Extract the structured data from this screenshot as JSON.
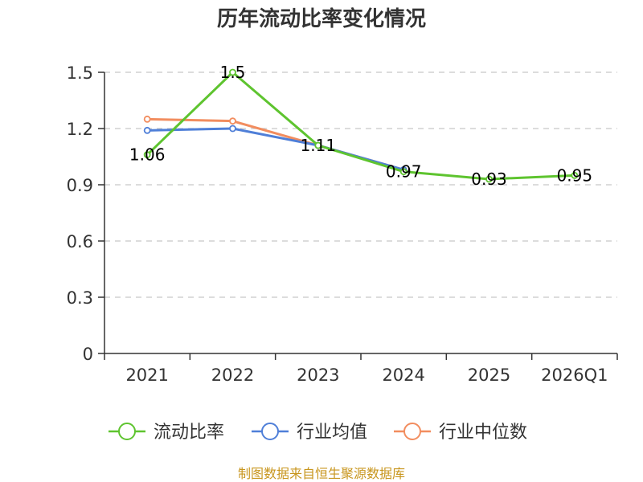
{
  "chart_data": {
    "type": "line",
    "title": "历年流动比率变化情况",
    "categories": [
      "2021",
      "2022",
      "2023",
      "2024",
      "2025",
      "2026Q1"
    ],
    "ylim": [
      0,
      1.5
    ],
    "yticks": [
      "0",
      "0.3",
      "0.6",
      "0.9",
      "1.2",
      "1.5"
    ],
    "ytick_values": [
      0,
      0.3,
      0.6,
      0.9,
      1.2,
      1.5
    ],
    "xlabel": "",
    "ylabel": "",
    "grid": true,
    "legend_position": "bottom",
    "series": [
      {
        "name": "流动比率",
        "color": "#5ec42f",
        "values": [
          1.06,
          1.5,
          1.11,
          0.97,
          0.93,
          0.95
        ],
        "labels": [
          "1.06",
          "1.5",
          "1.11",
          "0.97",
          "0.93",
          "0.95"
        ]
      },
      {
        "name": "行业均值",
        "color": "#4f7fd8",
        "values": [
          1.19,
          1.2,
          1.11,
          0.98,
          null,
          null
        ],
        "labels": []
      },
      {
        "name": "行业中位数",
        "color": "#f28d5f",
        "values": [
          1.25,
          1.24,
          1.11,
          0.98,
          null,
          null
        ],
        "labels": []
      }
    ]
  },
  "source": {
    "text": "制图数据来自恒生聚源数据库",
    "color": "#c8961e"
  }
}
